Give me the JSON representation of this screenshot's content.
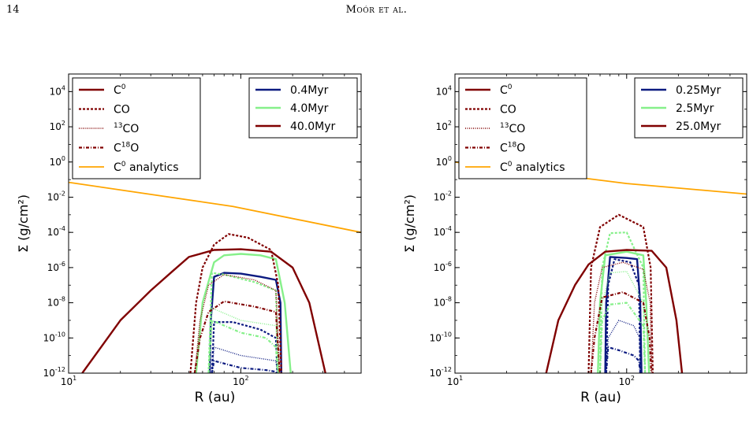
{
  "page": {
    "number": "14",
    "header": "Moór et al."
  },
  "chart_data": [
    {
      "type": "line",
      "xlabel": "R (au)",
      "ylabel": "Σ (g/cm²)",
      "xscale": "log",
      "yscale": "log",
      "xlim": [
        10,
        500
      ],
      "ylim": [
        1e-12,
        100000.0
      ],
      "xticks": [
        {
          "value": 10,
          "base": "10",
          "exp": "1"
        },
        {
          "value": 100,
          "base": "10",
          "exp": "2"
        }
      ],
      "yticks": [
        {
          "value": 10000.0,
          "base": "10",
          "exp": "4"
        },
        {
          "value": 100.0,
          "base": "10",
          "exp": "2"
        },
        {
          "value": 1,
          "base": "10",
          "exp": "0"
        },
        {
          "value": 0.01,
          "base": "10",
          "exp": "-2"
        },
        {
          "value": 0.0001,
          "base": "10",
          "exp": "-4"
        },
        {
          "value": 1e-06,
          "base": "10",
          "exp": "-6"
        },
        {
          "value": 1e-08,
          "base": "10",
          "exp": "-8"
        },
        {
          "value": 1e-10,
          "base": "10",
          "exp": "-10"
        },
        {
          "value": 1e-12,
          "base": "10",
          "exp": "-12"
        }
      ],
      "species_legend": [
        {
          "label": "C",
          "sup": "0",
          "pre": "",
          "post": "",
          "style": "solid"
        },
        {
          "label": "CO",
          "sup": "",
          "pre": "",
          "post": "",
          "style": "dashed"
        },
        {
          "label": "CO",
          "sup": "",
          "pre": "13",
          "post": "",
          "style": "dotted"
        },
        {
          "label": "C",
          "sup": "18",
          "pre": "",
          "post": "O",
          "style": "dashdot"
        },
        {
          "label": "C",
          "sup": "0",
          "pre": "",
          "post": " analytics",
          "style": "analytic"
        }
      ],
      "time_legend": [
        {
          "label": "0.4Myr",
          "color": "#0b1a80"
        },
        {
          "label": "4.0Myr",
          "color": "#86f08a"
        },
        {
          "label": "40.0Myr",
          "color": "#800000"
        }
      ],
      "analytic_color": "#ffa500",
      "analytic": {
        "x": [
          10,
          90,
          500
        ],
        "y": [
          0.07,
          0.003,
          0.0001
        ]
      },
      "curves": [
        {
          "time": 0,
          "species": "C0",
          "x": [
            66,
            67,
            70,
            80,
            100,
            130,
            160,
            170,
            172
          ],
          "y": [
            1e-12,
            1e-09,
            3e-07,
            5e-07,
            4.5e-07,
            3e-07,
            2e-07,
            1e-08,
            1e-12
          ]
        },
        {
          "time": 0,
          "species": "CO",
          "x": [
            68,
            70,
            90,
            130,
            160,
            163
          ],
          "y": [
            1e-12,
            8e-10,
            8e-10,
            3e-10,
            1e-10,
            1e-12
          ]
        },
        {
          "time": 0,
          "species": "13CO",
          "x": [
            68,
            70,
            100,
            160,
            163
          ],
          "y": [
            1e-12,
            3e-11,
            1e-11,
            5e-12,
            1e-12
          ]
        },
        {
          "time": 0,
          "species": "C18O",
          "x": [
            68,
            70,
            100,
            140,
            160,
            162
          ],
          "y": [
            1e-12,
            5e-12,
            2e-12,
            1.5e-12,
            1.2e-12,
            1e-12
          ]
        },
        {
          "time": 1,
          "species": "C0",
          "x": [
            55,
            60,
            70,
            80,
            100,
            130,
            160,
            180,
            195
          ],
          "y": [
            1e-12,
            1e-08,
            2e-06,
            5e-06,
            6e-06,
            5e-06,
            3e-06,
            1e-08,
            1e-12
          ]
        },
        {
          "time": 1,
          "species": "CO",
          "x": [
            65,
            68,
            80,
            120,
            160,
            165
          ],
          "y": [
            1e-12,
            5e-07,
            4e-07,
            1.5e-07,
            5e-08,
            1e-12
          ]
        },
        {
          "time": 1,
          "species": "13CO",
          "x": [
            65,
            68,
            100,
            160,
            165
          ],
          "y": [
            1e-12,
            5e-09,
            1e-09,
            5e-10,
            1e-12
          ]
        },
        {
          "time": 1,
          "species": "C18O",
          "x": [
            65,
            68,
            100,
            140,
            160,
            164
          ],
          "y": [
            1e-12,
            1e-09,
            2e-10,
            1e-10,
            3e-11,
            1e-12
          ]
        },
        {
          "time": 2,
          "species": "C0",
          "x": [
            12,
            20,
            30,
            40,
            50,
            70,
            100,
            150,
            200,
            250,
            310
          ],
          "y": [
            1e-12,
            1e-09,
            5e-08,
            6e-07,
            4e-06,
            1e-05,
            1.1e-05,
            8e-06,
            1e-06,
            1e-08,
            1e-12
          ]
        },
        {
          "time": 2,
          "species": "CO",
          "x": [
            51,
            55,
            60,
            70,
            85,
            110,
            150,
            165,
            172
          ],
          "y": [
            1e-12,
            1e-08,
            1e-06,
            2e-05,
            8e-05,
            5e-05,
            1e-05,
            1e-07,
            1e-12
          ]
        },
        {
          "time": 2,
          "species": "13CO",
          "x": [
            54,
            58,
            65,
            80,
            120,
            160,
            168
          ],
          "y": [
            1e-12,
            1e-09,
            1e-07,
            4e-07,
            2e-07,
            5e-08,
            1e-12
          ]
        },
        {
          "time": 2,
          "species": "C18O",
          "x": [
            54,
            58,
            65,
            80,
            120,
            160,
            168
          ],
          "y": [
            1e-12,
            1e-10,
            3e-09,
            1.2e-08,
            6e-09,
            3e-09,
            1e-12
          ]
        }
      ]
    },
    {
      "type": "line",
      "xlabel": "R (au)",
      "ylabel": "Σ (g/cm²)",
      "xscale": "log",
      "yscale": "log",
      "xlim": [
        10,
        500
      ],
      "ylim": [
        1e-12,
        100000.0
      ],
      "xticks": [
        {
          "value": 10,
          "base": "10",
          "exp": "1"
        },
        {
          "value": 100,
          "base": "10",
          "exp": "2"
        }
      ],
      "yticks": [
        {
          "value": 10000.0,
          "base": "10",
          "exp": "4"
        },
        {
          "value": 100.0,
          "base": "10",
          "exp": "2"
        },
        {
          "value": 1,
          "base": "10",
          "exp": "0"
        },
        {
          "value": 0.01,
          "base": "10",
          "exp": "-2"
        },
        {
          "value": 0.0001,
          "base": "10",
          "exp": "-4"
        },
        {
          "value": 1e-06,
          "base": "10",
          "exp": "-6"
        },
        {
          "value": 1e-08,
          "base": "10",
          "exp": "-8"
        },
        {
          "value": 1e-10,
          "base": "10",
          "exp": "-10"
        },
        {
          "value": 1e-12,
          "base": "10",
          "exp": "-12"
        }
      ],
      "species_legend": [
        {
          "label": "C",
          "sup": "0",
          "pre": "",
          "post": "",
          "style": "solid"
        },
        {
          "label": "CO",
          "sup": "",
          "pre": "",
          "post": "",
          "style": "dashed"
        },
        {
          "label": "CO",
          "sup": "",
          "pre": "13",
          "post": "",
          "style": "dotted"
        },
        {
          "label": "C",
          "sup": "18",
          "pre": "",
          "post": "O",
          "style": "dashdot"
        },
        {
          "label": "C",
          "sup": "0",
          "pre": "",
          "post": " analytics",
          "style": "analytic"
        }
      ],
      "time_legend": [
        {
          "label": "0.25Myr",
          "color": "#0b1a80"
        },
        {
          "label": "2.5Myr",
          "color": "#86f08a"
        },
        {
          "label": "25.0Myr",
          "color": "#800000"
        }
      ],
      "analytic_color": "#ffa500",
      "analytic": {
        "x": [
          10,
          100,
          500
        ],
        "y": [
          1,
          0.06,
          0.015
        ]
      },
      "curves": [
        {
          "time": 0,
          "species": "C0",
          "x": [
            75,
            76,
            80,
            100,
            115,
            120,
            122
          ],
          "y": [
            1e-12,
            1e-08,
            4e-06,
            3.5e-06,
            3e-06,
            1e-08,
            1e-12
          ]
        },
        {
          "time": 0,
          "species": "CO",
          "x": [
            76,
            78,
            85,
            105,
            118,
            120
          ],
          "y": [
            1e-12,
            1e-07,
            3e-06,
            2e-06,
            1e-07,
            1e-12
          ]
        },
        {
          "time": 0,
          "species": "13CO",
          "x": [
            76,
            78,
            90,
            110,
            119,
            120
          ],
          "y": [
            1e-12,
            1e-10,
            1e-09,
            5e-10,
            1e-10,
            1e-12
          ]
        },
        {
          "time": 0,
          "species": "C18O",
          "x": [
            76,
            78,
            90,
            110,
            118,
            120
          ],
          "y": [
            1e-12,
            3e-11,
            2e-11,
            1e-11,
            5e-12,
            1e-12
          ]
        },
        {
          "time": 1,
          "species": "C0",
          "x": [
            68,
            70,
            75,
            100,
            125,
            130,
            135
          ],
          "y": [
            1e-12,
            1e-08,
            5e-06,
            8e-06,
            5e-06,
            1e-08,
            1e-12
          ]
        },
        {
          "time": 1,
          "species": "CO",
          "x": [
            70,
            72,
            80,
            100,
            125,
            128
          ],
          "y": [
            1e-12,
            1e-06,
            9e-05,
            0.0001,
            1e-06,
            1e-12
          ]
        },
        {
          "time": 1,
          "species": "13CO",
          "x": [
            70,
            72,
            80,
            100,
            125,
            128
          ],
          "y": [
            1e-12,
            1e-08,
            5e-07,
            6e-07,
            1e-08,
            1e-12
          ]
        },
        {
          "time": 1,
          "species": "C18O",
          "x": [
            70,
            72,
            80,
            100,
            125,
            128
          ],
          "y": [
            1e-12,
            1e-09,
            8e-09,
            1e-08,
            5e-10,
            1e-12
          ]
        },
        {
          "time": 2,
          "species": "C0",
          "x": [
            34,
            40,
            50,
            60,
            75,
            100,
            140,
            170,
            195,
            210
          ],
          "y": [
            1e-12,
            1e-09,
            1e-07,
            1.5e-06,
            8e-06,
            1e-05,
            9e-06,
            1e-06,
            1e-09,
            1e-12
          ]
        },
        {
          "time": 2,
          "species": "CO",
          "x": [
            60,
            62,
            70,
            90,
            125,
            138,
            142
          ],
          "y": [
            1e-12,
            1e-06,
            0.0002,
            0.001,
            0.0002,
            1e-06,
            1e-12
          ]
        },
        {
          "time": 2,
          "species": "13CO",
          "x": [
            62,
            65,
            72,
            95,
            125,
            137,
            140
          ],
          "y": [
            1e-12,
            1e-08,
            1e-06,
            2e-06,
            8e-07,
            1e-08,
            1e-12
          ]
        },
        {
          "time": 2,
          "species": "C18O",
          "x": [
            62,
            65,
            72,
            95,
            125,
            136,
            139
          ],
          "y": [
            1e-12,
            1e-10,
            2e-08,
            4e-08,
            1e-08,
            1e-10,
            1e-12
          ]
        }
      ]
    }
  ]
}
